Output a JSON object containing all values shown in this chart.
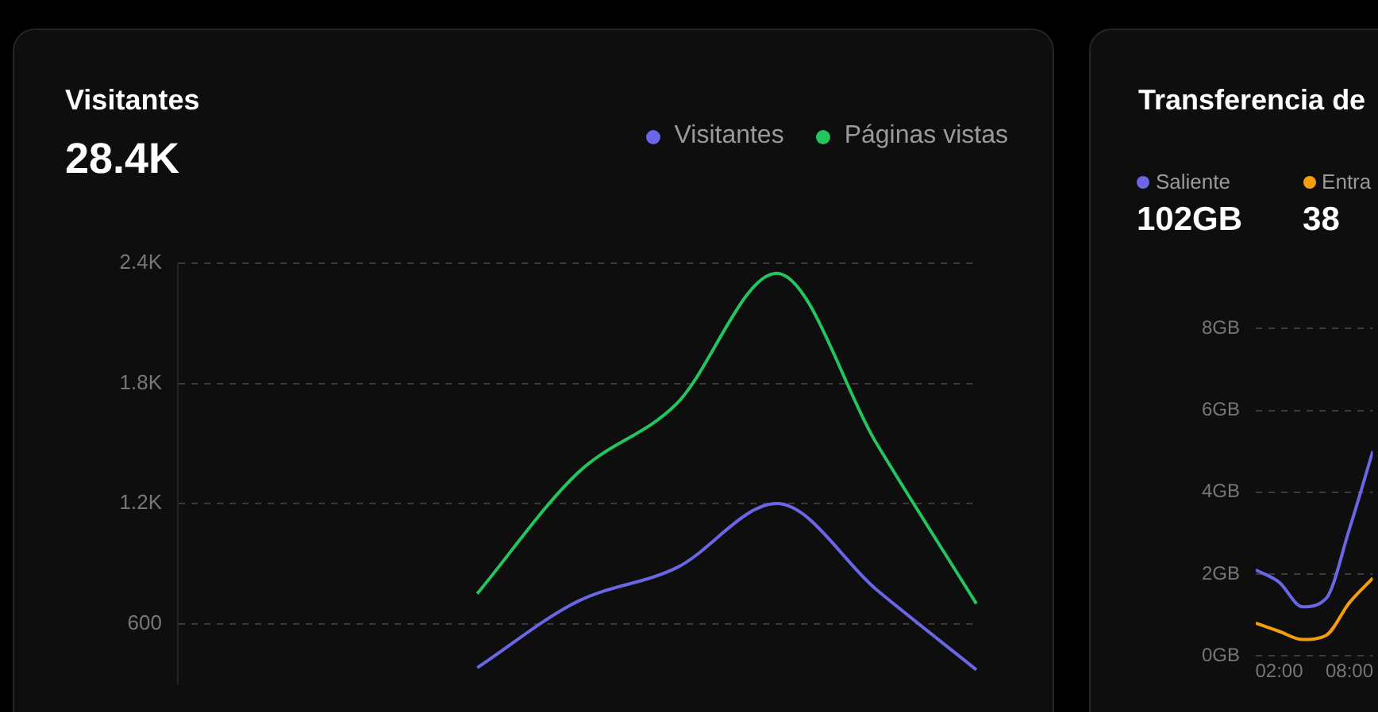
{
  "chart_data": [
    {
      "type": "line",
      "title": "Visitantes",
      "subtitle": "28.4K",
      "legend": "top right",
      "marker": "none",
      "grid": "y",
      "tick_labels": "y",
      "categories": [
        null,
        null,
        null,
        null,
        null,
        null,
        null,
        null,
        null
      ],
      "series": [
        {
          "name": "Visitantes",
          "color": "#6a66e6",
          "values": [
            null,
            null,
            null,
            380,
            710,
            880,
            1200,
            770,
            370
          ]
        },
        {
          "name": "Páginas vistas",
          "color": "#22c55e",
          "values": [
            null,
            null,
            null,
            750,
            1350,
            1700,
            2350,
            1500,
            700
          ]
        }
      ],
      "ylim": [
        300,
        2400
      ],
      "yticks": [
        600,
        {
          "value": 1200,
          "label": "1.2K"
        },
        {
          "value": 1800,
          "label": "1.8K"
        },
        {
          "value": 2400,
          "label": "2.4K"
        }
      ]
    },
    {
      "type": "line",
      "title": "Transferencia de",
      "legend": "top left",
      "marker": "none",
      "grid": "y",
      "annotations": [
        "102GB",
        "38"
      ],
      "x": [
        0,
        2,
        4,
        6,
        8,
        10
      ],
      "series": [
        {
          "name": "Saliente",
          "color": "#6a66e6",
          "values": [
            2.1,
            1.8,
            1.2,
            1.4,
            3.1,
            5.0
          ]
        },
        {
          "name": "Entra",
          "color": "#f59e0b",
          "values": [
            0.8,
            0.6,
            0.4,
            0.5,
            1.3,
            1.9
          ]
        }
      ],
      "xlim": [
        0,
        10
      ],
      "xticks": [
        {
          "value": 2,
          "label": "02:00"
        },
        {
          "value": 8,
          "label": "08:00"
        }
      ],
      "ylim": [
        0,
        8
      ],
      "yticks": [
        {
          "value": 0,
          "label": "0GB"
        },
        {
          "value": 2,
          "label": "2GB"
        },
        {
          "value": 4,
          "label": "4GB"
        },
        {
          "value": 6,
          "label": "6GB"
        },
        {
          "value": 8,
          "label": "8GB"
        }
      ]
    }
  ]
}
